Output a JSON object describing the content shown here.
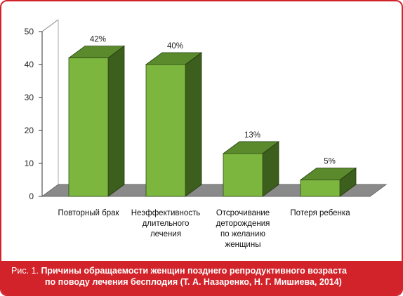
{
  "chart_data": {
    "type": "bar",
    "categories": [
      [
        "Повторный брак"
      ],
      [
        "Неэффективность",
        "длительного",
        "лечения"
      ],
      [
        "Отсрочивание",
        "деторождения",
        "по желанию",
        "женщины"
      ],
      [
        "Потеря ребенка"
      ]
    ],
    "values": [
      42,
      40,
      13,
      5
    ],
    "data_labels": [
      "42%",
      "40%",
      "13%",
      "5%"
    ],
    "yticks": [
      "0",
      "10",
      "20",
      "30",
      "40",
      "50"
    ],
    "ylim": [
      0,
      50
    ],
    "style": "3d-column",
    "grid": false,
    "legend": "none",
    "colors": {
      "front": "#7cb63f",
      "top": "#5a8a2c",
      "side": "#3d5f1d",
      "axis": "#333333"
    }
  },
  "caption": {
    "prefix": "Рис. 1.",
    "line1": "Причины обращаемости женщин позднего репродуктивного возраста",
    "line2": "по поводу лечения  бесплодия (Т. А. Назаренко, Н. Г. Мишиева, 2014)"
  }
}
